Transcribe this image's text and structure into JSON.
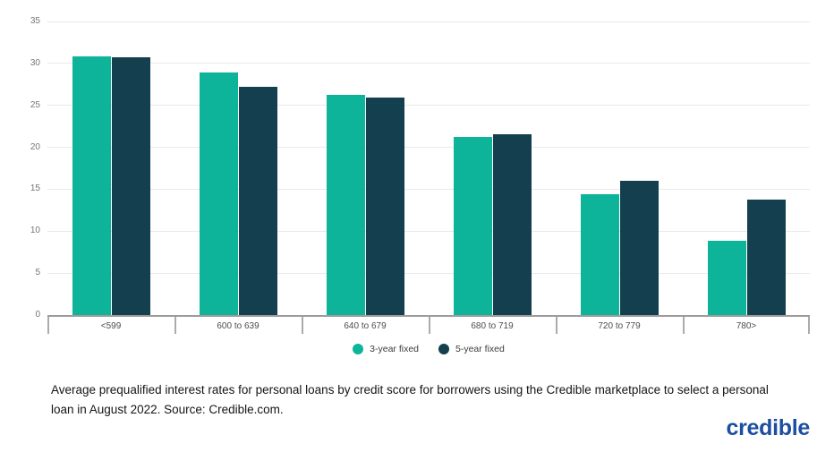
{
  "chart_data": {
    "type": "bar",
    "title": "",
    "categories": [
      "<599",
      "600 to 639",
      "640 to 679",
      "680 to 719",
      "720 to 779",
      "780>"
    ],
    "series": [
      {
        "name": "3-year fixed",
        "color": "#0db499",
        "values": [
          30.8,
          28.9,
          26.3,
          21.2,
          14.4,
          8.9
        ]
      },
      {
        "name": "5-year fixed",
        "color": "#143f4e",
        "values": [
          30.7,
          27.2,
          25.9,
          21.6,
          16.0,
          13.8
        ]
      }
    ],
    "xlabel": "",
    "ylabel": "",
    "ylim": [
      0,
      35
    ],
    "yticks": [
      0,
      5,
      10,
      15,
      20,
      25,
      30,
      35
    ],
    "grid": true,
    "legend_position": "bottom-center",
    "gridline_color": "#e9e9e9",
    "axis_color": "#9c9c9c"
  },
  "caption": {
    "text": "Average prequalified interest rates for personal loans by credit score for borrowers using the Credible marketplace to select a personal loan in August 2022. Source: Credible.com."
  },
  "branding": {
    "logo_text": "credible",
    "logo_color": "#1d4fa1"
  }
}
